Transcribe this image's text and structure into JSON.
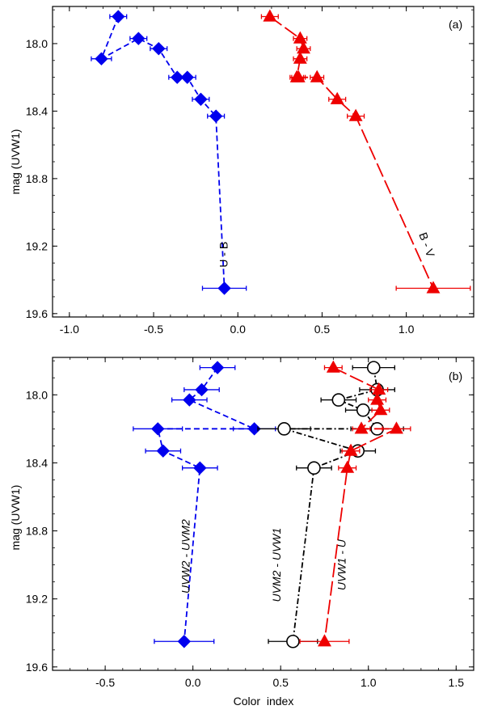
{
  "chart_data": [
    {
      "panel": "(a)",
      "type": "scatter",
      "xlabel": "",
      "ylabel": "mag (UVW1)",
      "xlim": [
        -1.1,
        1.4
      ],
      "ylim": [
        19.62,
        17.78
      ],
      "y_inverted": true,
      "xticks": [
        -1.0,
        -0.5,
        0.0,
        0.5,
        1.0
      ],
      "xtick_labels": [
        "-1.0",
        "-0.5",
        "0.0",
        "0.5",
        "1.0"
      ],
      "yticks": [
        18.0,
        18.4,
        18.8,
        19.2,
        19.6
      ],
      "ytick_labels": [
        "18.0",
        "18.4",
        "18.8",
        "19.2",
        "19.6"
      ],
      "series": [
        {
          "name": "U - B",
          "color": "#0000ee",
          "marker": "diamond",
          "line": "dashed",
          "x": [
            -0.71,
            -0.81,
            -0.59,
            -0.47,
            -0.36,
            -0.3,
            -0.22,
            -0.13,
            -0.08
          ],
          "y": [
            17.84,
            18.09,
            17.97,
            18.03,
            18.2,
            18.2,
            18.33,
            18.43,
            19.45
          ],
          "xerr": [
            0.05,
            0.06,
            0.05,
            0.05,
            0.05,
            0.05,
            0.05,
            0.05,
            0.13
          ],
          "label_x": -0.06,
          "label_y": 19.25
        },
        {
          "name": "B - V",
          "color": "#ee0000",
          "marker": "triangle",
          "line": "long-dashed",
          "x": [
            0.19,
            0.37,
            0.39,
            0.37,
            0.35,
            0.36,
            0.47,
            0.59,
            0.7,
            1.16
          ],
          "y": [
            17.84,
            17.97,
            18.03,
            18.09,
            18.2,
            18.2,
            18.2,
            18.33,
            18.43,
            19.45
          ],
          "xerr": [
            0.05,
            0.04,
            0.04,
            0.04,
            0.04,
            0.04,
            0.04,
            0.05,
            0.05,
            0.22
          ],
          "label_x": 1.1,
          "label_y": 19.2
        }
      ]
    },
    {
      "panel": "(b)",
      "type": "scatter",
      "xlabel": "Color  index",
      "ylabel": "mag (UVW1)",
      "xlim": [
        -0.8,
        1.6
      ],
      "ylim": [
        19.62,
        17.78
      ],
      "y_inverted": true,
      "xticks": [
        -0.5,
        0.0,
        0.5,
        1.0,
        1.5
      ],
      "xtick_labels": [
        "-0.5",
        "0.0",
        "0.5",
        "1.0",
        "1.5"
      ],
      "yticks": [
        18.0,
        18.4,
        18.8,
        19.2,
        19.6
      ],
      "ytick_labels": [
        "18.0",
        "18.4",
        "18.8",
        "19.2",
        "19.6"
      ],
      "series": [
        {
          "name": "UVW2 - UVM2",
          "color": "#0000ee",
          "marker": "diamond",
          "line": "dashed",
          "x": [
            0.14,
            0.05,
            -0.02,
            0.35,
            -0.2,
            -0.17,
            0.04,
            -0.05
          ],
          "y": [
            17.84,
            17.97,
            18.03,
            18.2,
            18.2,
            18.33,
            18.43,
            19.45
          ],
          "xerr": [
            0.1,
            0.1,
            0.1,
            0.12,
            0.14,
            0.1,
            0.1,
            0.17
          ],
          "label_x": -0.02,
          "label_y": 18.95
        },
        {
          "name": "UVM2 - UVW1",
          "color": "#000000",
          "marker": "circle",
          "line": "dash-dot",
          "x": [
            1.03,
            1.05,
            0.83,
            0.97,
            1.05,
            0.52,
            0.94,
            0.69,
            0.57
          ],
          "y": [
            17.84,
            17.97,
            18.03,
            18.09,
            18.2,
            18.2,
            18.33,
            18.43,
            19.45
          ],
          "xerr": [
            0.12,
            0.1,
            0.1,
            0.1,
            0.15,
            0.15,
            0.1,
            0.1,
            0.14
          ],
          "label_x": 0.5,
          "label_y": 19.0
        },
        {
          "name": "UVW1 - U",
          "color": "#ee0000",
          "marker": "triangle",
          "line": "long-dashed",
          "x": [
            0.8,
            1.06,
            1.05,
            1.07,
            0.96,
            1.16,
            0.9,
            0.88,
            0.75
          ],
          "y": [
            17.84,
            17.97,
            18.03,
            18.09,
            18.2,
            18.2,
            18.33,
            18.43,
            19.45
          ],
          "xerr": [
            0.05,
            0.05,
            0.05,
            0.05,
            0.05,
            0.08,
            0.05,
            0.05,
            0.14
          ],
          "label_x": 0.87,
          "label_y": 19.0
        }
      ]
    }
  ]
}
